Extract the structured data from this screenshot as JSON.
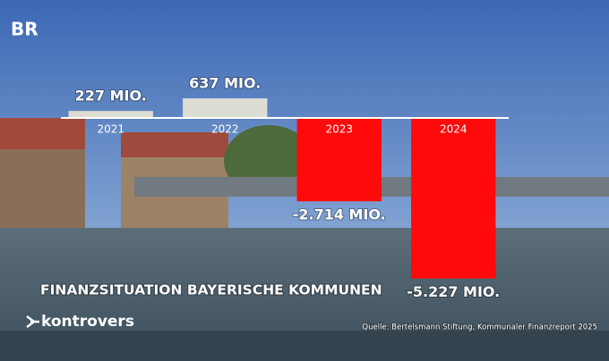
{
  "branding": {
    "logo": "BR",
    "show": "kontrovers"
  },
  "chart_data": {
    "type": "bar",
    "title": "FINANZSITUATION BAYERISCHE KOMMUNEN",
    "source": "Quelle: Bertelsmann Stiftung, Kommunaler Finanzreport 2025",
    "categories": [
      "2021",
      "2022",
      "2023",
      "2024"
    ],
    "values": [
      227,
      637,
      -2714,
      -5227
    ],
    "value_labels": [
      "227 MIO.",
      "637 MIO.",
      "-2.714 MIO.",
      "-5.227 MIO."
    ],
    "colors": [
      "#dcdcd2",
      "#dcdcd2",
      "#ff0a0a",
      "#ff0a0a"
    ],
    "ylim": [
      -5500,
      1000
    ]
  }
}
